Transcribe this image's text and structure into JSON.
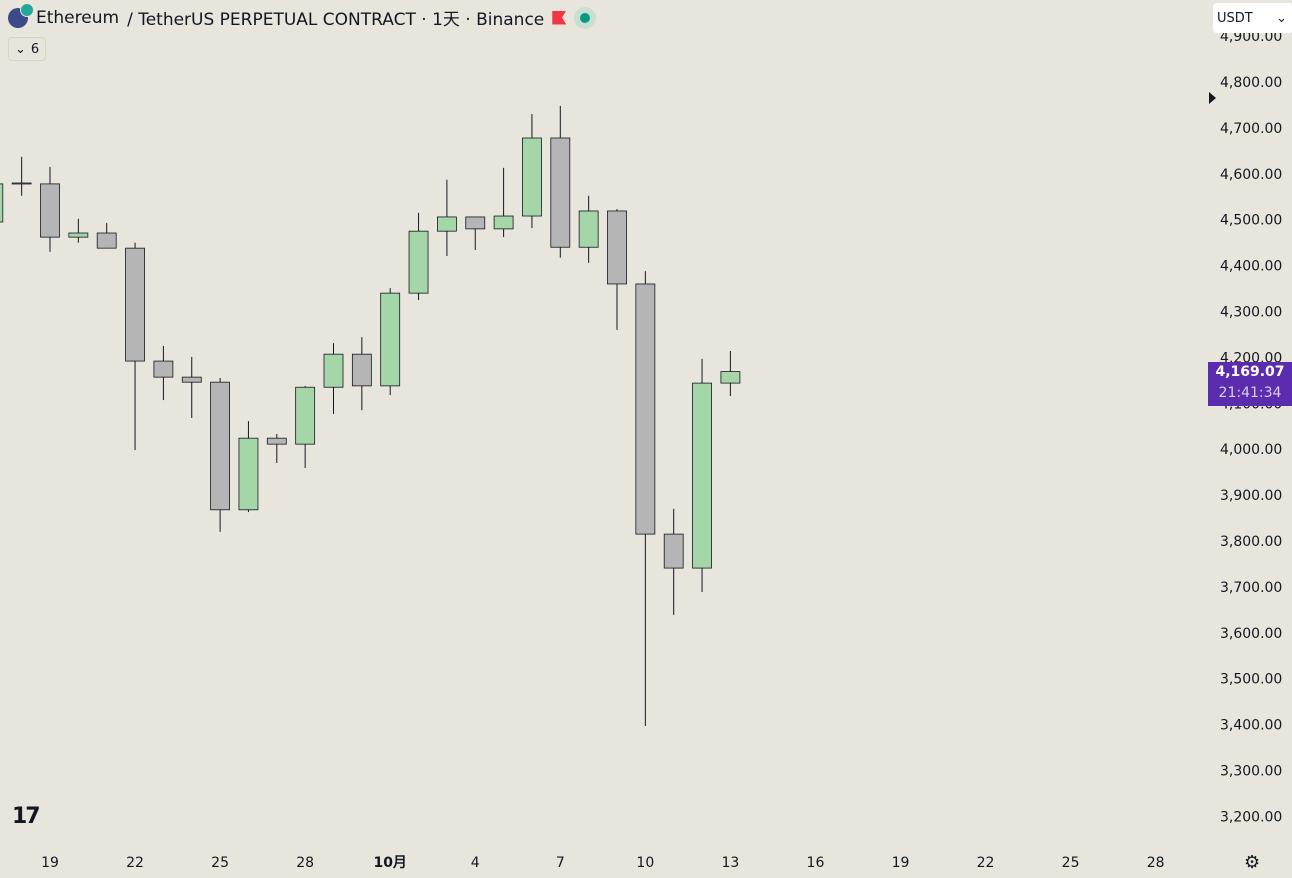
{
  "header": {
    "symbol": "Ethereum",
    "title": "/ TetherUS PERPETUAL CONTRACT · 1天 · Binance",
    "indicators_count": "6"
  },
  "currency": {
    "value": "USDT"
  },
  "last_price": {
    "price": "4,169.07",
    "countdown": "21:41:34"
  },
  "colors": {
    "up": "#a5d6a7",
    "down": "#b5b5b5",
    "label": "#5b2dae"
  },
  "chart_data": {
    "type": "candlestick",
    "ylim": [
      3150,
      4950
    ],
    "y_ticks": [
      3200,
      3300,
      3400,
      3500,
      3600,
      3700,
      3800,
      3900,
      4000,
      4100,
      4200,
      4300,
      4400,
      4500,
      4600,
      4700,
      4800,
      4900
    ],
    "y_tick_labels": [
      "3,200.00",
      "3,300.00",
      "3,400.00",
      "3,500.00",
      "3,600.00",
      "3,700.00",
      "3,800.00",
      "3,900.00",
      "4,000.00",
      "4,100.00",
      "4,200.00",
      "4,300.00",
      "4,400.00",
      "4,500.00",
      "4,600.00",
      "4,700.00",
      "4,800.00",
      "4,900.00"
    ],
    "x_tick_labels": [
      "19",
      "22",
      "25",
      "28",
      "10月",
      "4",
      "7",
      "10",
      "13",
      "16",
      "19",
      "22",
      "25",
      "28"
    ],
    "candles": [
      {
        "d": "Sep17",
        "o": 4495,
        "h": 4590,
        "l": 4490,
        "c": 4578
      },
      {
        "d": "Sep18",
        "o": 4580,
        "h": 4637,
        "l": 4552,
        "c": 4578
      },
      {
        "d": "Sep19",
        "o": 4578,
        "h": 4615,
        "l": 4430,
        "c": 4462
      },
      {
        "d": "Sep20",
        "o": 4462,
        "h": 4502,
        "l": 4450,
        "c": 4471
      },
      {
        "d": "Sep21",
        "o": 4471,
        "h": 4493,
        "l": 4438,
        "c": 4438
      },
      {
        "d": "Sep22",
        "o": 4438,
        "h": 4450,
        "l": 3998,
        "c": 4192
      },
      {
        "d": "Sep23",
        "o": 4192,
        "h": 4225,
        "l": 4107,
        "c": 4157
      },
      {
        "d": "Sep24",
        "o": 4157,
        "h": 4201,
        "l": 4068,
        "c": 4146
      },
      {
        "d": "Sep25",
        "o": 4146,
        "h": 4155,
        "l": 3820,
        "c": 3868
      },
      {
        "d": "Sep26",
        "o": 3868,
        "h": 4061,
        "l": 3863,
        "c": 4024
      },
      {
        "d": "Sep27",
        "o": 4024,
        "h": 4033,
        "l": 3970,
        "c": 4011
      },
      {
        "d": "Sep28",
        "o": 4011,
        "h": 4138,
        "l": 3959,
        "c": 4135
      },
      {
        "d": "Sep29",
        "o": 4135,
        "h": 4231,
        "l": 4077,
        "c": 4207
      },
      {
        "d": "Sep30",
        "o": 4207,
        "h": 4244,
        "l": 4085,
        "c": 4138
      },
      {
        "d": "Oct1",
        "o": 4138,
        "h": 4351,
        "l": 4118,
        "c": 4340
      },
      {
        "d": "Oct2",
        "o": 4340,
        "h": 4515,
        "l": 4325,
        "c": 4475
      },
      {
        "d": "Oct3",
        "o": 4475,
        "h": 4587,
        "l": 4421,
        "c": 4506
      },
      {
        "d": "Oct4",
        "o": 4506,
        "h": 4506,
        "l": 4434,
        "c": 4480
      },
      {
        "d": "Oct5",
        "o": 4480,
        "h": 4613,
        "l": 4462,
        "c": 4508
      },
      {
        "d": "Oct6",
        "o": 4508,
        "h": 4730,
        "l": 4482,
        "c": 4678
      },
      {
        "d": "Oct7",
        "o": 4678,
        "h": 4748,
        "l": 4417,
        "c": 4440
      },
      {
        "d": "Oct8",
        "o": 4440,
        "h": 4552,
        "l": 4406,
        "c": 4519
      },
      {
        "d": "Oct9",
        "o": 4519,
        "h": 4523,
        "l": 4260,
        "c": 4360
      },
      {
        "d": "Oct10",
        "o": 4360,
        "h": 4388,
        "l": 3397,
        "c": 3815
      },
      {
        "d": "Oct11",
        "o": 3815,
        "h": 3870,
        "l": 3639,
        "c": 3741
      },
      {
        "d": "Oct12",
        "o": 3741,
        "h": 4197,
        "l": 3689,
        "c": 4144
      },
      {
        "d": "Oct13",
        "o": 4144,
        "h": 4214,
        "l": 4116,
        "c": 4169.07
      }
    ]
  }
}
